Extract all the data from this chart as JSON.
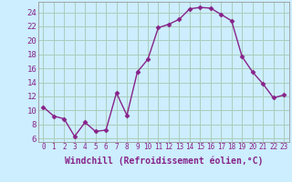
{
  "x": [
    0,
    1,
    2,
    3,
    4,
    5,
    6,
    7,
    8,
    9,
    10,
    11,
    12,
    13,
    14,
    15,
    16,
    17,
    18,
    19,
    20,
    21,
    22,
    23
  ],
  "y": [
    10.5,
    9.2,
    8.8,
    6.3,
    8.3,
    7.0,
    7.2,
    12.5,
    9.3,
    15.5,
    17.3,
    21.8,
    22.3,
    23.0,
    24.5,
    24.7,
    24.6,
    23.7,
    22.8,
    17.7,
    15.5,
    13.8,
    11.8,
    12.2
  ],
  "line_color": "#882288",
  "marker": "D",
  "markersize": 2.5,
  "linewidth": 1.0,
  "xlabel": "Windchill (Refroidissement éolien,°C)",
  "xlabel_fontsize": 7,
  "xtick_labels": [
    "0",
    "1",
    "2",
    "3",
    "4",
    "5",
    "6",
    "7",
    "8",
    "9",
    "10",
    "11",
    "12",
    "13",
    "14",
    "15",
    "16",
    "17",
    "18",
    "19",
    "20",
    "21",
    "22",
    "23"
  ],
  "ytick_values": [
    6,
    8,
    10,
    12,
    14,
    16,
    18,
    20,
    22,
    24
  ],
  "ylim": [
    5.5,
    25.5
  ],
  "xlim": [
    -0.5,
    23.5
  ],
  "background_color": "#cceeff",
  "grid_color": "#aaccbb",
  "tick_color": "#882288",
  "ytick_fontsize": 6.5,
  "xtick_fontsize": 5.5
}
